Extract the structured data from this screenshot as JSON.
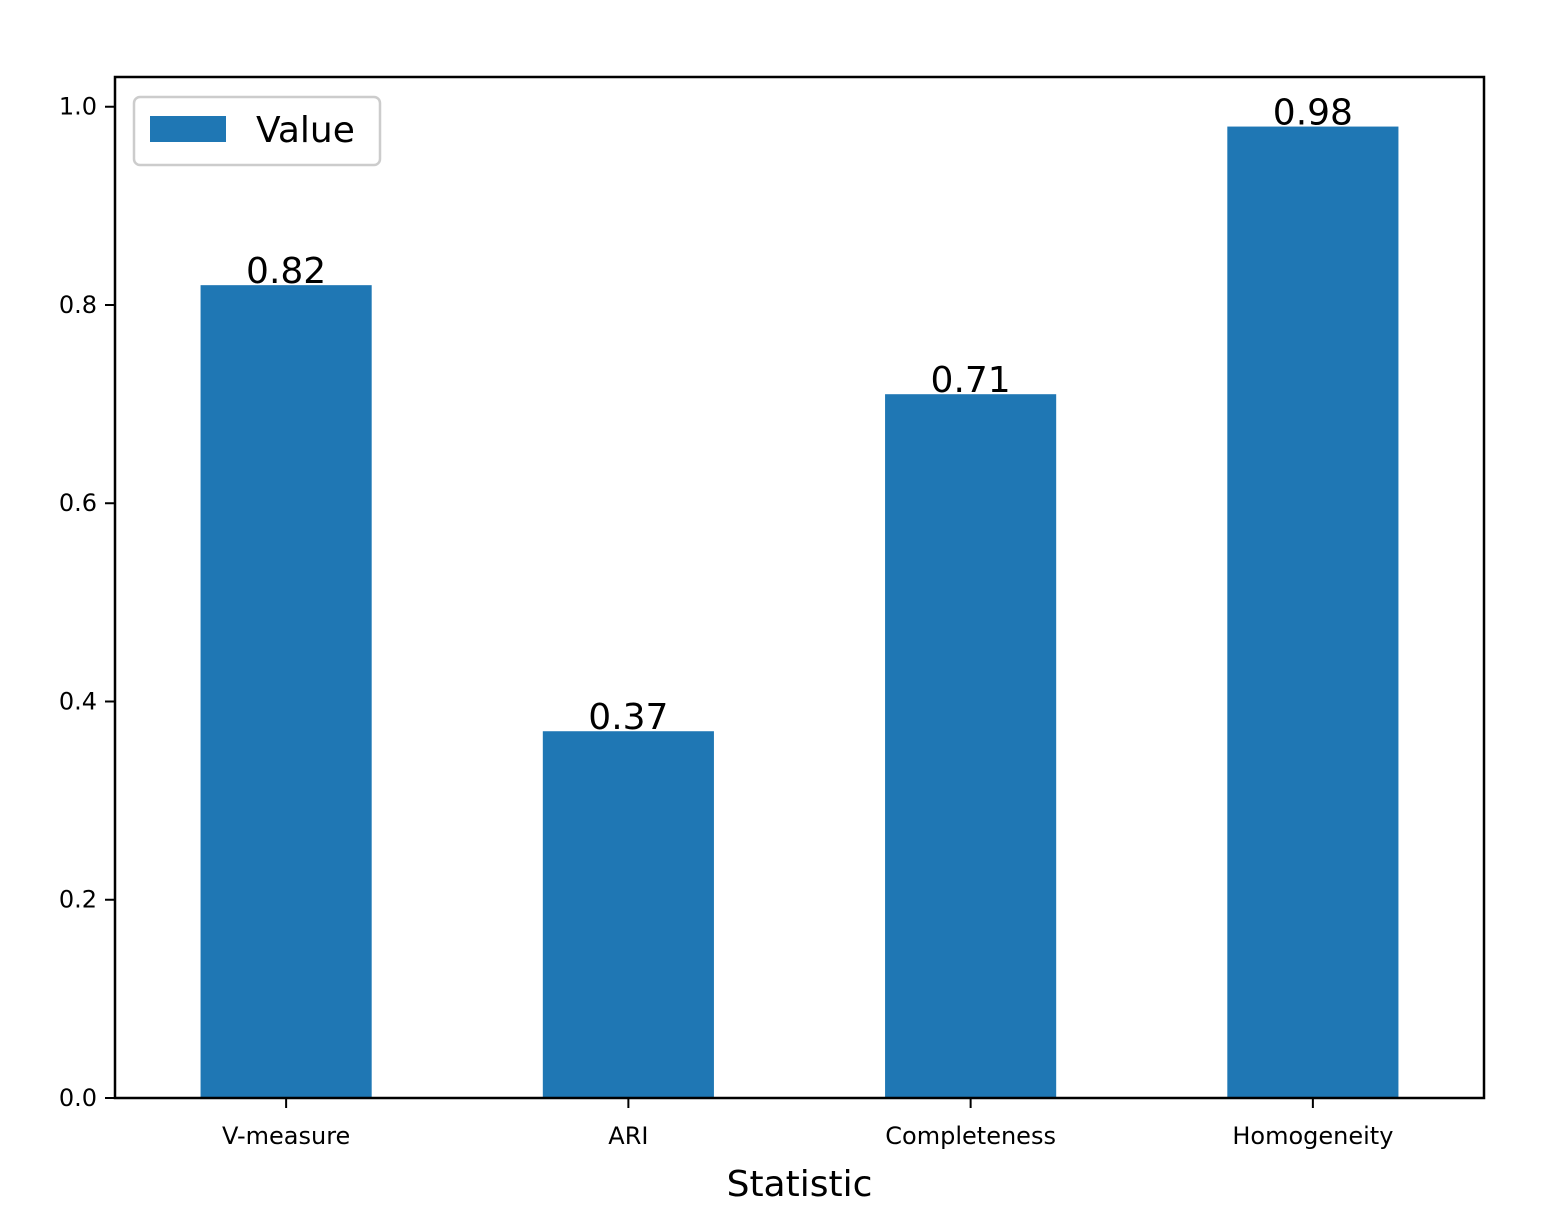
{
  "chart_data": {
    "type": "bar",
    "title": "",
    "xlabel": "Statistic",
    "ylabel": "",
    "categories": [
      "V-measure",
      "ARI",
      "Completeness",
      "Homogeneity"
    ],
    "series": [
      {
        "name": "Value",
        "values": [
          0.82,
          0.37,
          0.71,
          0.98
        ],
        "color": "#1f77b4"
      }
    ],
    "data_labels": [
      "0.82",
      "0.37",
      "0.71",
      "0.98"
    ],
    "ylim": [
      0,
      1.03
    ],
    "yticks": [
      0.0,
      0.2,
      0.4,
      0.6,
      0.8,
      1.0
    ],
    "ytick_labels": [
      "0.0",
      "0.2",
      "0.4",
      "0.6",
      "0.8",
      "1.0"
    ],
    "grid": false,
    "legend": {
      "position": "top-left",
      "entries": [
        "Value"
      ]
    }
  }
}
